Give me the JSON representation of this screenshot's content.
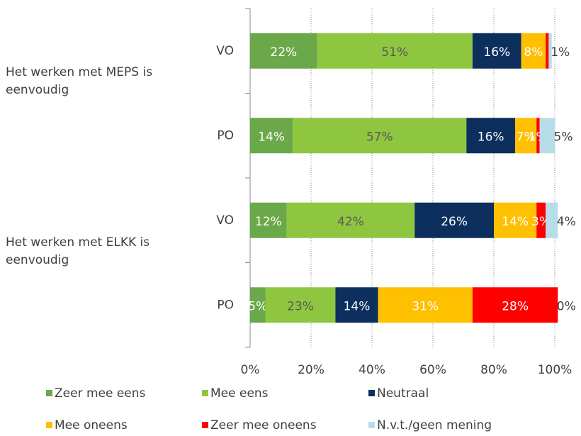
{
  "chart_data": {
    "type": "stacked-barh",
    "categories": [
      "VO",
      "PO",
      "VO",
      "PO"
    ],
    "groups": [
      "Het werken met MEPS is eenvoudig",
      "Het werken met ELKK is eenvoudig"
    ],
    "xlim": [
      0,
      100
    ],
    "xticks": [
      {
        "value": 0,
        "label": "0%"
      },
      {
        "value": 20,
        "label": "20%"
      },
      {
        "value": 40,
        "label": "40%"
      },
      {
        "value": 60,
        "label": "60%"
      },
      {
        "value": 80,
        "label": "80%"
      },
      {
        "value": 100,
        "label": "100%"
      }
    ],
    "grid": true,
    "legend": "bottom",
    "series": [
      {
        "name": "Zeer mee eens",
        "color": "#6ba84a",
        "label_color": "#ffffff",
        "values": [
          22,
          14,
          12,
          5
        ],
        "value_labels": [
          "22%",
          "14%",
          "12%",
          "5%"
        ]
      },
      {
        "name": "Mee eens",
        "color": "#8ec63f",
        "label_color": "#595959",
        "values": [
          51,
          57,
          42,
          23
        ],
        "value_labels": [
          "51%",
          "57%",
          "42%",
          "23%"
        ]
      },
      {
        "name": "Neutraal",
        "color": "#0c2f5e",
        "label_color": "#ffffff",
        "values": [
          16,
          16,
          26,
          14
        ],
        "value_labels": [
          "16%",
          "16%",
          "26%",
          "14%"
        ]
      },
      {
        "name": "Mee oneens",
        "color": "#ffc000",
        "label_color": "#ffffff",
        "values": [
          8,
          7,
          14,
          31
        ],
        "value_labels": [
          "8%",
          "7%",
          "14%",
          "31%"
        ]
      },
      {
        "name": "Zeer mee oneens",
        "color": "#ff0000",
        "label_color": "#ffffff",
        "values": [
          1,
          1,
          3,
          28
        ],
        "value_labels": [
          null,
          "1%",
          "3%",
          "28%"
        ]
      },
      {
        "name": "N.v.t./geen mening",
        "color": "#b7dde8",
        "label_color": "#404040",
        "values": [
          1,
          5,
          4,
          0
        ],
        "value_labels": [
          "1%",
          "5%",
          "4%",
          "0%"
        ]
      }
    ]
  }
}
